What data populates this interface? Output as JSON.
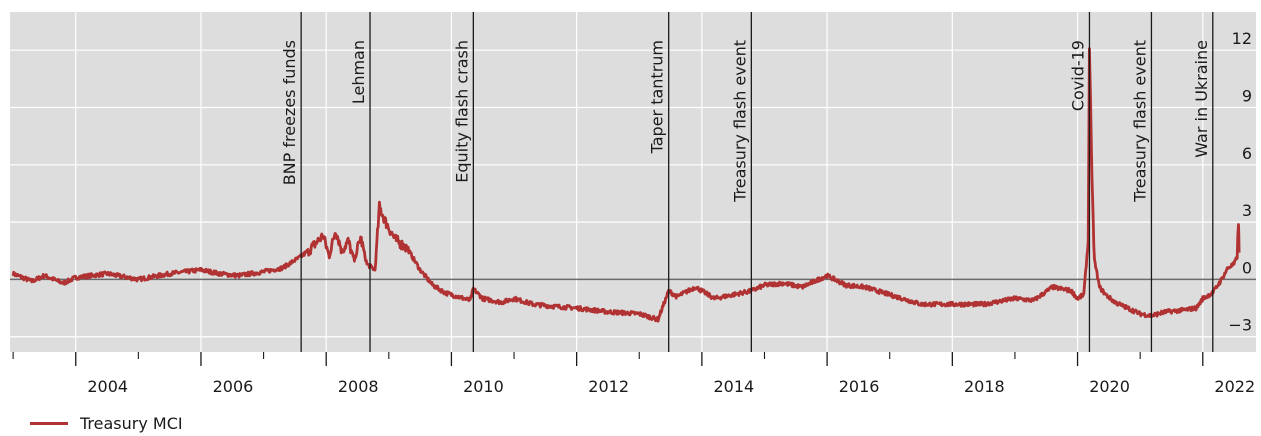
{
  "chart_data": {
    "type": "line",
    "title": "",
    "xlabel": "",
    "ylabel": "",
    "xlim": [
      2002.95,
      2022.85
    ],
    "ylim": [
      -3.8,
      14
    ],
    "y_ticks": [
      -3,
      0,
      3,
      6,
      9,
      12
    ],
    "x_tick_labels": [
      "2004",
      "2006",
      "2008",
      "2010",
      "2012",
      "2014",
      "2016",
      "2018",
      "2020",
      "2022"
    ],
    "x_tick_values": [
      2004,
      2006,
      2008,
      2010,
      2012,
      2014,
      2016,
      2018,
      2020,
      2022
    ],
    "y_axis_position": "right",
    "grid": true,
    "legend_placement": "bottom-left",
    "background_color": "#dddddd",
    "series_color": "#b03232",
    "events": [
      {
        "label": "BNP freezes funds",
        "x": 2007.6
      },
      {
        "label": "Lehman",
        "x": 2008.7
      },
      {
        "label": "Equity flash crash",
        "x": 2010.35
      },
      {
        "label": "Taper tantrum",
        "x": 2013.47
      },
      {
        "label": "Treasury flash event",
        "x": 2014.79
      },
      {
        "label": "Covid-19",
        "x": 2020.19
      },
      {
        "label": "Treasury flash event",
        "x": 2021.18
      },
      {
        "label": "War in Ukraine",
        "x": 2022.16
      }
    ],
    "series": [
      {
        "name": "Treasury MCI",
        "x": [
          2003.0,
          2003.3,
          2003.5,
          2003.8,
          2004.0,
          2004.5,
          2005.0,
          2005.5,
          2006.0,
          2006.3,
          2006.6,
          2007.0,
          2007.3,
          2007.6,
          2007.75,
          2007.95,
          2008.05,
          2008.15,
          2008.25,
          2008.35,
          2008.45,
          2008.55,
          2008.65,
          2008.78,
          2008.85,
          2008.95,
          2009.1,
          2009.3,
          2009.5,
          2009.7,
          2009.9,
          2010.1,
          2010.3,
          2010.35,
          2010.5,
          2010.8,
          2011.0,
          2011.3,
          2011.6,
          2012.0,
          2012.5,
          2013.0,
          2013.3,
          2013.47,
          2013.6,
          2013.9,
          2014.2,
          2014.5,
          2014.79,
          2015.0,
          2015.3,
          2015.6,
          2016.0,
          2016.3,
          2016.6,
          2017.0,
          2017.5,
          2018.0,
          2018.5,
          2019.0,
          2019.3,
          2019.6,
          2019.9,
          2020.0,
          2020.1,
          2020.17,
          2020.19,
          2020.21,
          2020.23,
          2020.27,
          2020.35,
          2020.45,
          2020.6,
          2020.8,
          2021.0,
          2021.18,
          2021.4,
          2021.7,
          2021.9,
          2022.0,
          2022.16,
          2022.3,
          2022.4,
          2022.5,
          2022.55,
          2022.57,
          2022.58
        ],
        "values": [
          0.3,
          -0.1,
          0.2,
          -0.2,
          0.1,
          0.3,
          0.0,
          0.3,
          0.5,
          0.3,
          0.2,
          0.4,
          0.6,
          1.2,
          1.6,
          2.3,
          1.2,
          2.6,
          1.5,
          2.0,
          1.0,
          2.2,
          0.8,
          0.5,
          3.8,
          3.0,
          2.1,
          1.6,
          0.5,
          -0.3,
          -0.7,
          -0.9,
          -1.1,
          -0.5,
          -1.0,
          -1.2,
          -1.0,
          -1.3,
          -1.4,
          -1.5,
          -1.7,
          -1.8,
          -2.1,
          -0.6,
          -0.9,
          -0.4,
          -1.0,
          -0.8,
          -0.6,
          -0.3,
          -0.2,
          -0.4,
          0.2,
          -0.3,
          -0.4,
          -0.8,
          -1.3,
          -1.3,
          -1.3,
          -1.0,
          -1.1,
          -0.4,
          -0.6,
          -1.0,
          -0.8,
          2.0,
          12.0,
          9.0,
          5.0,
          1.0,
          -0.4,
          -0.8,
          -1.2,
          -1.5,
          -1.8,
          -1.9,
          -1.7,
          -1.6,
          -1.5,
          -1.0,
          -0.7,
          0.0,
          0.6,
          0.8,
          1.2,
          3.0,
          1.4
        ]
      }
    ]
  }
}
